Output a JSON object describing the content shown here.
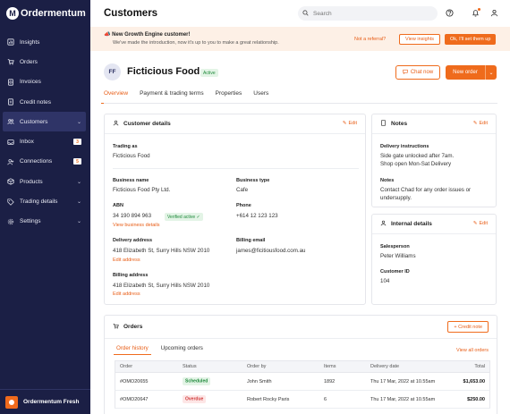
{
  "app": {
    "name": "Ordermentum",
    "logo_letter": "M"
  },
  "sidebar": {
    "items": [
      {
        "label": "Insights",
        "icon": "insights-icon"
      },
      {
        "label": "Orders",
        "icon": "cart-icon"
      },
      {
        "label": "Invoices",
        "icon": "invoice-icon"
      },
      {
        "label": "Credit notes",
        "icon": "credit-note-icon"
      },
      {
        "label": "Customers",
        "icon": "users-icon",
        "active": true
      },
      {
        "label": "Inbox",
        "icon": "inbox-icon",
        "badge": "3"
      },
      {
        "label": "Connections",
        "icon": "connections-icon",
        "badge": "5"
      },
      {
        "label": "Products",
        "icon": "box-icon"
      },
      {
        "label": "Trading details",
        "icon": "tag-icon"
      },
      {
        "label": "Settings",
        "icon": "gear-icon"
      }
    ],
    "footer": {
      "name": "Ordermentum Fresh"
    }
  },
  "header": {
    "title": "Customers",
    "search_placeholder": "Search"
  },
  "banner": {
    "title": "New Growth Engine customer!",
    "subtitle": "We've made the introduction, now it's up to you to make a great relationship.",
    "link": "Not a referral?",
    "view_insights": "View insights",
    "cta": "Ok, I'll set them up"
  },
  "customer": {
    "initials": "FF",
    "name": "Ficticious Food",
    "status": "Active",
    "chat_label": "Chat now",
    "new_order_label": "New order"
  },
  "tabs": [
    "Overview",
    "Payment & trading terms",
    "Properties",
    "Users"
  ],
  "customer_details": {
    "title": "Customer details",
    "edit": "Edit",
    "trading_as_label": "Trading as",
    "trading_as": "Ficticious Food",
    "business_name_label": "Business name",
    "business_name": "Ficticious Food Pty Ltd.",
    "business_type_label": "Business type",
    "business_type": "Cafe",
    "abn_label": "ABN",
    "abn": "34 190 894 963",
    "verified": "Verified active",
    "view_business_details": "View business details",
    "phone_label": "Phone",
    "phone": "+614 12 123 123",
    "delivery_address_label": "Delivery address",
    "delivery_address": "418 Elizabeth St, Surry Hills NSW 2010",
    "edit_address": "Edit address",
    "billing_email_label": "Billing email",
    "billing_email": "james@ficitiousfood.com.au",
    "billing_address_label": "Billing address",
    "billing_address": "418 Elizabeth St, Surry Hills NSW 2010"
  },
  "notes": {
    "title": "Notes",
    "edit": "Edit",
    "delivery_label": "Delivery instructions",
    "delivery_line1": "Side gate unlocked after 7am.",
    "delivery_line2": "Shop open Mon-Sat Delivery",
    "notes_label": "Notes",
    "notes_line1": "Contact Chad for any order issues or",
    "notes_line2": "undersupply."
  },
  "internal": {
    "title": "Internal details",
    "edit": "Edit",
    "salesperson_label": "Salesperson",
    "salesperson": "Peter Williams",
    "customer_id_label": "Customer ID",
    "customer_id": "104"
  },
  "orders": {
    "title": "Orders",
    "credit_note": "Credit note",
    "tab_history": "Order history",
    "tab_upcoming": "Upcoming orders",
    "view_all": "View all orders",
    "columns": [
      "Order",
      "Status",
      "Order by",
      "Items",
      "Delivery date",
      "Total"
    ],
    "rows": [
      {
        "order": "#OMO20655",
        "status": "Scheduled",
        "status_color": "green",
        "by": "John Smith",
        "items": "1892",
        "date": "Thu 17 Mar, 2022 at 10.55am",
        "total": "$1,653.00"
      },
      {
        "order": "#OMO20647",
        "status": "Overdue",
        "status_color": "red",
        "by": "Robert Rocky Paris",
        "items": "6",
        "date": "Thu 17 Mar, 2022 at 10.55am",
        "total": "$250.00"
      }
    ]
  },
  "colors": {
    "sidebar": "#1b1f45",
    "accent": "#ef6b1c",
    "success": "#1f8a3b",
    "danger": "#d03a3a"
  }
}
